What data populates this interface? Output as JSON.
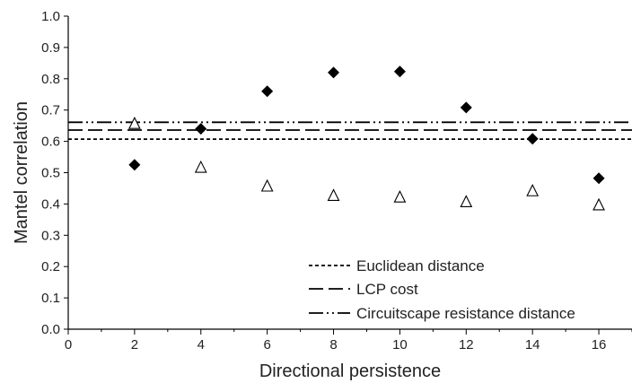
{
  "chart_data": {
    "type": "scatter",
    "title": "",
    "xlabel": "Directional persistence",
    "ylabel": "Mantel correlation",
    "xlim": [
      0,
      17
    ],
    "ylim": [
      0.0,
      1.0
    ],
    "xticks": [
      "0",
      "2",
      "4",
      "6",
      "8",
      "10",
      "12",
      "14",
      "16"
    ],
    "yticks": [
      "0.0",
      "0.1",
      "0.2",
      "0.3",
      "0.4",
      "0.5",
      "0.6",
      "0.7",
      "0.8",
      "0.9",
      "1.0"
    ],
    "grid": false,
    "legend_position": "bottom-right",
    "series": [
      {
        "marker": "filled-diamond",
        "color": "#000000",
        "x": [
          2,
          4,
          6,
          8,
          10,
          12,
          14,
          16
        ],
        "y": [
          0.525,
          0.64,
          0.76,
          0.82,
          0.823,
          0.708,
          0.608,
          0.482
        ]
      },
      {
        "marker": "open-triangle",
        "color": "#000000",
        "x": [
          2,
          4,
          6,
          8,
          10,
          12,
          14,
          16
        ],
        "y": [
          0.655,
          0.515,
          0.455,
          0.425,
          0.42,
          0.405,
          0.44,
          0.395
        ]
      }
    ],
    "reference_lines": [
      {
        "name": "Euclidean distance",
        "y": 0.607,
        "style": "short-dash"
      },
      {
        "name": "LCP cost",
        "y": 0.636,
        "style": "long-dash"
      },
      {
        "name": "Circuitscape resistance distance",
        "y": 0.661,
        "style": "dash-dot-dot"
      }
    ]
  }
}
